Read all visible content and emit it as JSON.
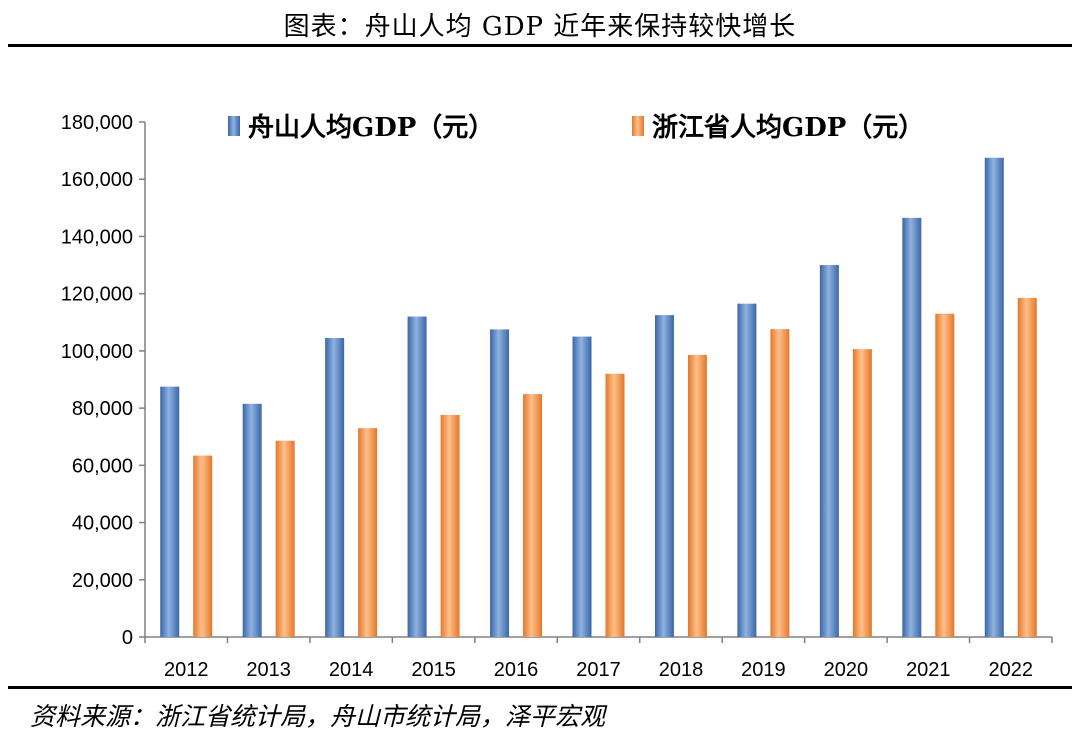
{
  "title": "图表：舟山人均 GDP 近年来保持较快增长",
  "source": "资料来源：浙江省统计局，舟山市统计局，泽平宏观",
  "colors": {
    "series1": "#4a7ebb",
    "series2": "#ee8a44"
  },
  "chart_data": {
    "type": "bar",
    "categories": [
      "2012",
      "2013",
      "2014",
      "2015",
      "2016",
      "2017",
      "2018",
      "2019",
      "2020",
      "2021",
      "2022"
    ],
    "series": [
      {
        "name": "舟山人均GDP（元）",
        "values": [
          87500,
          81500,
          104500,
          112000,
          107500,
          105000,
          112500,
          116500,
          130000,
          146500,
          167500
        ]
      },
      {
        "name": "浙江省人均GDP（元）",
        "values": [
          63400,
          68600,
          73000,
          77600,
          84900,
          92000,
          98600,
          107600,
          100600,
          113000,
          118500
        ]
      }
    ],
    "ylim": [
      0,
      180000
    ],
    "yticks": [
      "0",
      "20,000",
      "40,000",
      "60,000",
      "80,000",
      "100,000",
      "120,000",
      "140,000",
      "160,000",
      "180,000"
    ],
    "legend_position": "top",
    "grid": false
  }
}
